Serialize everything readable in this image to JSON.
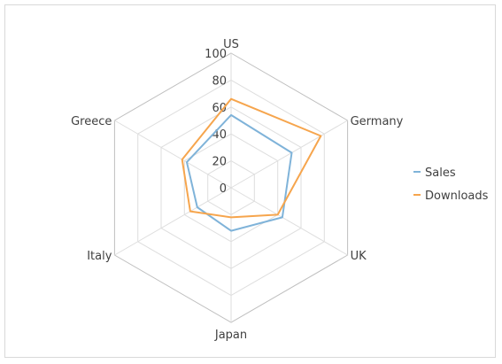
{
  "chart_data": {
    "type": "radar",
    "categories": [
      "US",
      "Germany",
      "UK",
      "Japan",
      "Italy",
      "Greece"
    ],
    "series": [
      {
        "name": "Sales",
        "values": [
          54,
          52,
          44,
          32,
          29,
          38
        ],
        "color": "#7fb3d9"
      },
      {
        "name": "Downloads",
        "values": [
          66,
          77,
          40,
          22,
          35,
          42
        ],
        "color": "#f6a54d"
      }
    ],
    "rlim": [
      0,
      100
    ],
    "ticks": [
      "0",
      "20",
      "40",
      "60",
      "80",
      "100"
    ],
    "grid": true,
    "legend_position": "right"
  }
}
